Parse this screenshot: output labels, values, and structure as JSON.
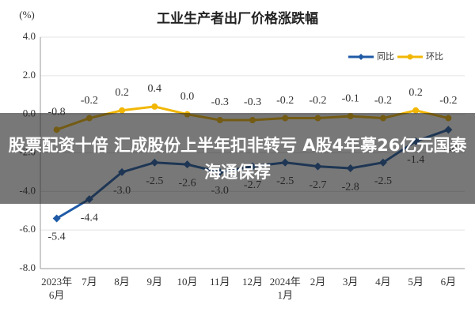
{
  "chart_data": {
    "type": "line",
    "title": "工业生产者出厂价格涨跌幅",
    "y_label": "(%)",
    "categories": [
      "2023年\n6月",
      "7月",
      "8月",
      "9月",
      "10月",
      "11月",
      "12月",
      "2024年\n1月",
      "2月",
      "3月",
      "4月",
      "5月",
      "6月"
    ],
    "series": [
      {
        "name": "同比",
        "color": "#1f5aa6",
        "values": [
          -5.4,
          -4.4,
          -3.0,
          -2.5,
          -2.6,
          -3.0,
          -2.7,
          -2.5,
          -2.7,
          -2.8,
          -2.5,
          -1.4,
          -0.8
        ],
        "value_labels": [
          "-5.4",
          "-4.4",
          "-3.0",
          "-2.5",
          "-2.6",
          "-3.0",
          "-2.7",
          "-2.5",
          "-2.7",
          "-2.8",
          "-2.5",
          "-1.4",
          "-0.8"
        ]
      },
      {
        "name": "环比",
        "color": "#f2b705",
        "values": [
          -0.8,
          -0.2,
          0.2,
          0.4,
          0.0,
          -0.3,
          -0.3,
          -0.2,
          -0.2,
          -0.1,
          -0.2,
          0.2,
          -0.2
        ],
        "value_labels": [
          "-0.8",
          "-0.2",
          "0.2",
          "0.4",
          "0.0",
          "-0.3",
          "-0.3",
          "-0.2",
          "-0.2",
          "-0.1",
          "-0.2",
          "0.2",
          "-0.2"
        ]
      }
    ],
    "ylim": [
      -8,
      4
    ],
    "yticks": [
      {
        "value": 4,
        "label": "4.0"
      },
      {
        "value": 2,
        "label": "2.0"
      },
      {
        "value": 0,
        "label": "0.0"
      },
      {
        "value": -2,
        "label": "-2.0"
      },
      {
        "value": -4,
        "label": "-4.0"
      },
      {
        "value": -6,
        "label": "-6.0"
      },
      {
        "value": -8,
        "label": "-8.0"
      }
    ],
    "grid": true,
    "legend": "top-right"
  },
  "banner": {
    "text": "股票配资十倍 汇成股份上半年扣非转亏 A股4年募26亿元国泰海通保荐"
  }
}
